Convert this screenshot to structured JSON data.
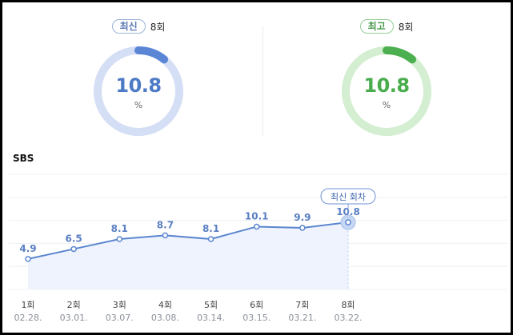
{
  "stats": {
    "latest": {
      "badge": "최신",
      "episode": "8회",
      "value": "10.8",
      "unit": "%",
      "fraction": 0.108,
      "color": "#4d7bc5"
    },
    "highest": {
      "badge": "최고",
      "episode": "8회",
      "value": "10.8",
      "unit": "%",
      "fraction": 0.108,
      "color": "#49ad4d"
    }
  },
  "chart_data": {
    "type": "area",
    "title": "SBS",
    "categories": [
      "1회",
      "2회",
      "3회",
      "4회",
      "5회",
      "6회",
      "7회",
      "8회"
    ],
    "dates": [
      "02.28.",
      "03.01.",
      "03.07.",
      "03.08.",
      "03.14.",
      "03.15.",
      "03.21.",
      "03.22."
    ],
    "series": [
      {
        "values": [
          4.9,
          6.5,
          8.1,
          8.7,
          8.1,
          10.1,
          9.9,
          10.8
        ]
      }
    ],
    "data_labels": [
      "4.9",
      "6.5",
      "8.1",
      "8.7",
      "8.1",
      "10.1",
      "9.9",
      "10.8"
    ],
    "highlight_index": 7,
    "highlight_label": "최신 회차",
    "color": "#5b86cf",
    "grid": true
  }
}
